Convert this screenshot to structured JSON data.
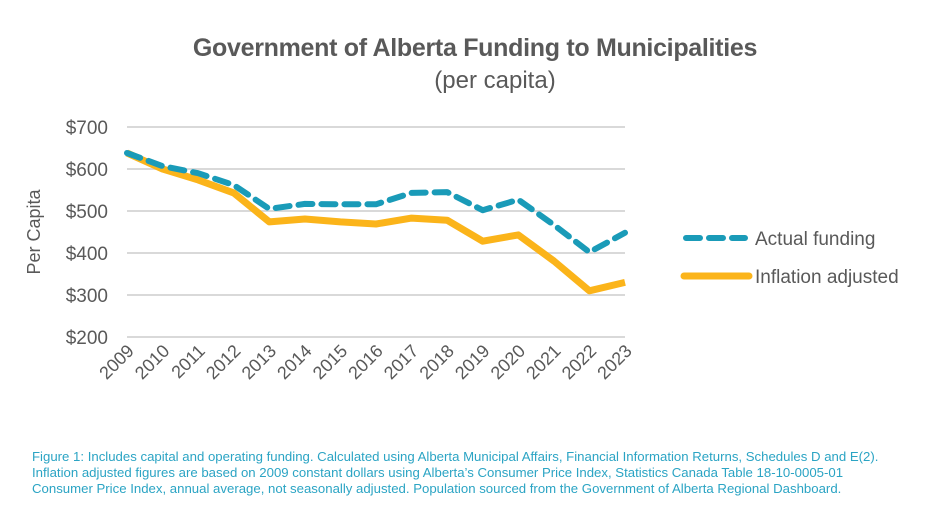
{
  "chart_data": {
    "type": "line",
    "title": "Government of Alberta Funding to Municipalities",
    "subtitle": "(per capita)",
    "xlabel": "",
    "ylabel": "Per Capita",
    "ylim": [
      200,
      700
    ],
    "yticks": [
      700,
      600,
      500,
      400,
      300,
      200
    ],
    "ytick_labels": [
      "$700",
      "$600",
      "$500",
      "$400",
      "$300",
      "$200"
    ],
    "grid": true,
    "legend_position": "right",
    "categories": [
      "2009",
      "2010",
      "2011",
      "2012",
      "2013",
      "2014",
      "2015",
      "2016",
      "2017",
      "2018",
      "2019",
      "2020",
      "2021",
      "2022",
      "2023"
    ],
    "series": [
      {
        "name": "Actual funding",
        "style": "dashed",
        "color": "#1a9bb8",
        "values": [
          638,
          607,
          590,
          562,
          505,
          517,
          516,
          516,
          543,
          545,
          502,
          527,
          467,
          402,
          448
        ]
      },
      {
        "name": "Inflation adjusted",
        "style": "solid",
        "color": "#fbb41a",
        "values": [
          638,
          600,
          574,
          543,
          474,
          481,
          474,
          469,
          483,
          478,
          428,
          443,
          381,
          310,
          330
        ]
      }
    ]
  },
  "footnote": {
    "lines": [
      "Figure 1: Includes capital and operating funding. Calculated using Alberta Municipal Affairs, Financial Information Returns, Schedules D and E(2).",
      "Inflation adjusted figures are based on 2009 constant dollars using Alberta’s Consumer Price Index, Statistics Canada Table 18-10-0005-01",
      "Consumer Price Index, annual average, not seasonally adjusted. Population sourced from the Government of Alberta Regional Dashboard."
    ]
  },
  "colors": {
    "text": "#595959",
    "grid": "#d9d9d9",
    "footnote": "#2ba4c4"
  }
}
